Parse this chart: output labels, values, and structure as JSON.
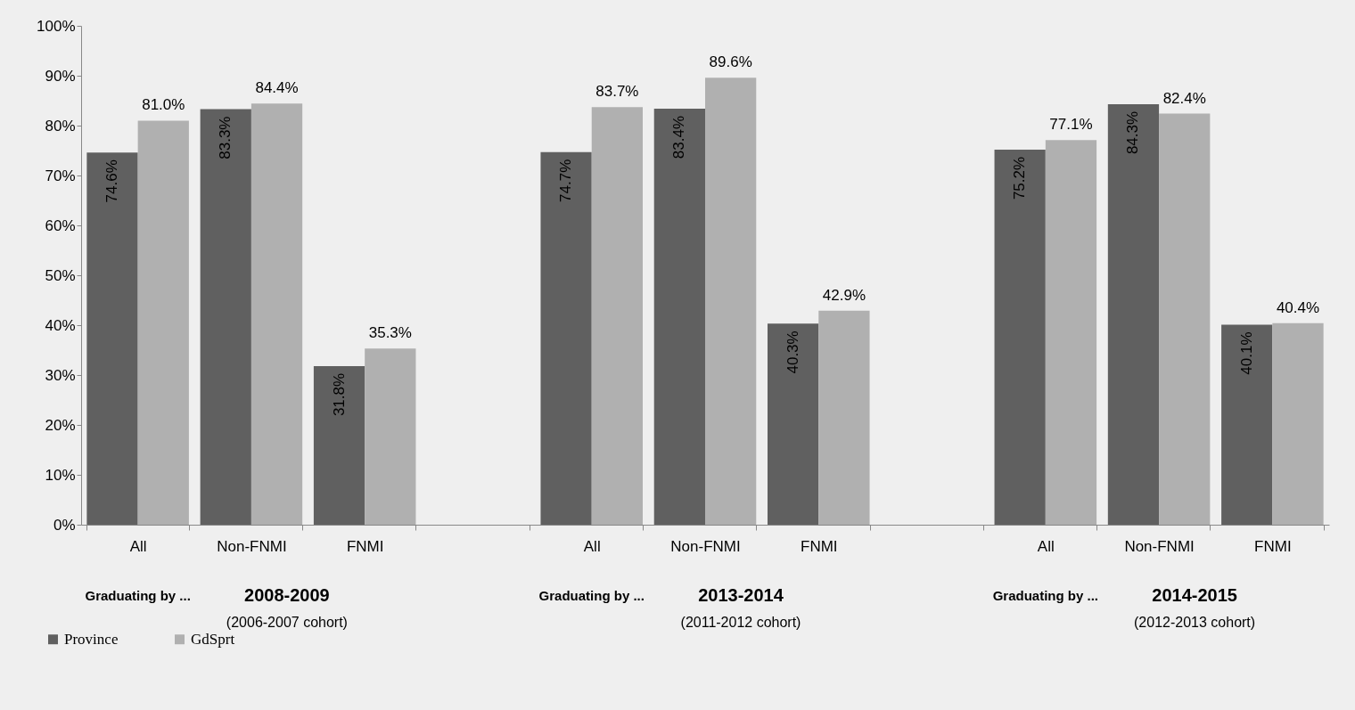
{
  "chart_data": {
    "type": "bar",
    "categories": [
      "All",
      "Non-FNMI",
      "FNMI",
      null,
      "All",
      "Non-FNMI",
      "FNMI",
      null,
      "All",
      "Non-FNMI",
      "FNMI"
    ],
    "series": [
      {
        "name": "Province",
        "color": "#606060",
        "values": [
          74.6,
          83.3,
          31.8,
          null,
          74.7,
          83.4,
          40.3,
          null,
          75.2,
          84.3,
          40.1
        ],
        "value_labels": [
          "74.6%",
          "83.3%",
          "31.8%",
          null,
          "74.7%",
          "83.4%",
          "40.3%",
          null,
          "75.2%",
          "84.3%",
          "40.1%"
        ]
      },
      {
        "name": "GdSprt",
        "color": "#b0b0b0",
        "values": [
          81.0,
          84.4,
          35.3,
          null,
          83.7,
          89.6,
          42.9,
          null,
          77.1,
          82.4,
          40.4
        ],
        "value_labels": [
          "81.0%",
          "84.4%",
          "35.3%",
          null,
          "83.7%",
          "89.6%",
          "42.9%",
          null,
          "77.1%",
          "82.4%",
          "40.4%"
        ]
      }
    ],
    "ylim": [
      0,
      100
    ],
    "yticks": [
      {
        "value": 0,
        "label": "0%"
      },
      {
        "value": 10,
        "label": "10%"
      },
      {
        "value": 20,
        "label": "20%"
      },
      {
        "value": 30,
        "label": "30%"
      },
      {
        "value": 40,
        "label": "40%"
      },
      {
        "value": 50,
        "label": "50%"
      },
      {
        "value": 60,
        "label": "60%"
      },
      {
        "value": 70,
        "label": "70%"
      },
      {
        "value": 80,
        "label": "80%"
      },
      {
        "value": 90,
        "label": "90%"
      },
      {
        "value": 100,
        "label": "100%"
      }
    ],
    "annotations": [
      "Graduating by ...",
      "2008-2009",
      "(2006-2007 cohort)",
      "Graduating by ...",
      "2013-2014",
      "(2011-2012 cohort)",
      "Graduating by ...",
      "2014-2015",
      "(2012-2013 cohort)"
    ],
    "legend": "bottom left",
    "grid": false
  }
}
